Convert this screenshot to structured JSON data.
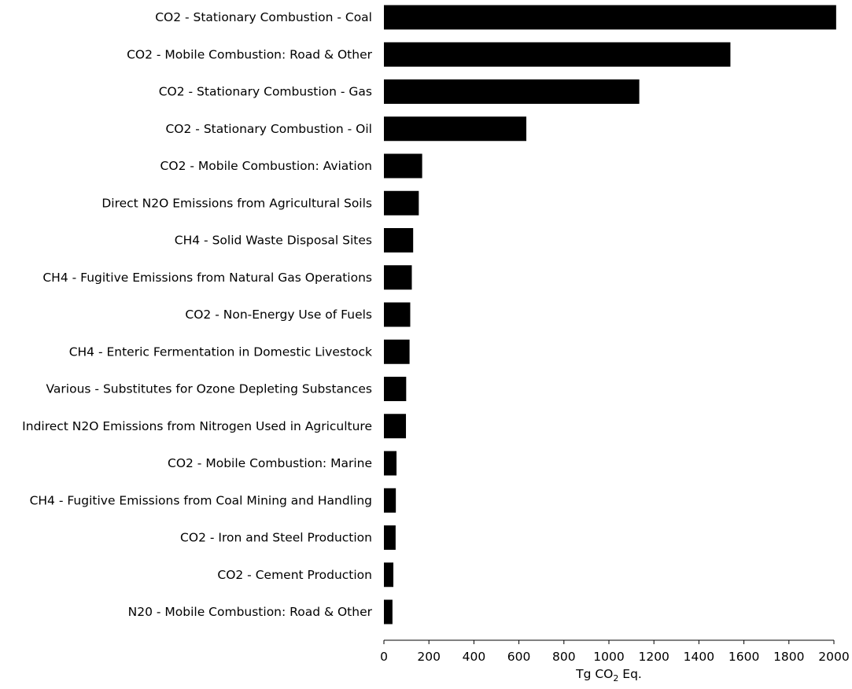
{
  "chart_data": {
    "type": "bar",
    "orientation": "horizontal",
    "categories": [
      "CO2 - Stationary Combustion - Coal",
      "CO2 - Mobile Combustion: Road & Other",
      "CO2 - Stationary Combustion - Gas",
      "CO2 - Stationary Combustion - Oil",
      "CO2 - Mobile Combustion: Aviation",
      "Direct N2O Emissions from Agricultural Soils",
      "CH4 - Solid Waste Disposal Sites",
      "CH4 - Fugitive Emissions from Natural Gas Operations",
      "CO2 - Non-Energy Use of Fuels",
      "CH4 - Enteric Fermentation in Domestic Livestock",
      "Various - Substitutes for Ozone Depleting Substances",
      "Indirect N2O Emissions from Nitrogen Used in Agriculture",
      "CO2 - Mobile Combustion: Marine",
      "CH4 - Fugitive Emissions from Coal Mining and Handling",
      "CO2 - Iron and Steel Production",
      "CO2 - Cement Production",
      "N20 - Mobile Combustion: Road & Other"
    ],
    "values": [
      2010,
      1540,
      1135,
      633,
      170,
      155,
      130,
      124,
      117,
      114,
      99,
      98,
      56,
      53,
      52,
      42,
      38
    ],
    "xlabel": {
      "main": "Tg CO",
      "sub": "2",
      "suffix": " Eq."
    },
    "xlim": [
      0,
      2000
    ],
    "xticks": [
      "0",
      "200",
      "400",
      "600",
      "800",
      "1000",
      "1200",
      "1400",
      "1600",
      "1800",
      "2000"
    ],
    "bar_color": "#000000",
    "grid": false,
    "legend": "none"
  }
}
